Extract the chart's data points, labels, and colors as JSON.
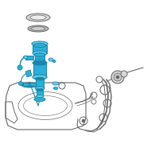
{
  "bg_color": "#ffffff",
  "line_color": "#666666",
  "highlight_color": "#2ab0d8",
  "highlight_dark": "#1a85a8",
  "highlight_light": "#6dcfea",
  "figsize": [
    2.0,
    2.0
  ],
  "dpi": 100
}
